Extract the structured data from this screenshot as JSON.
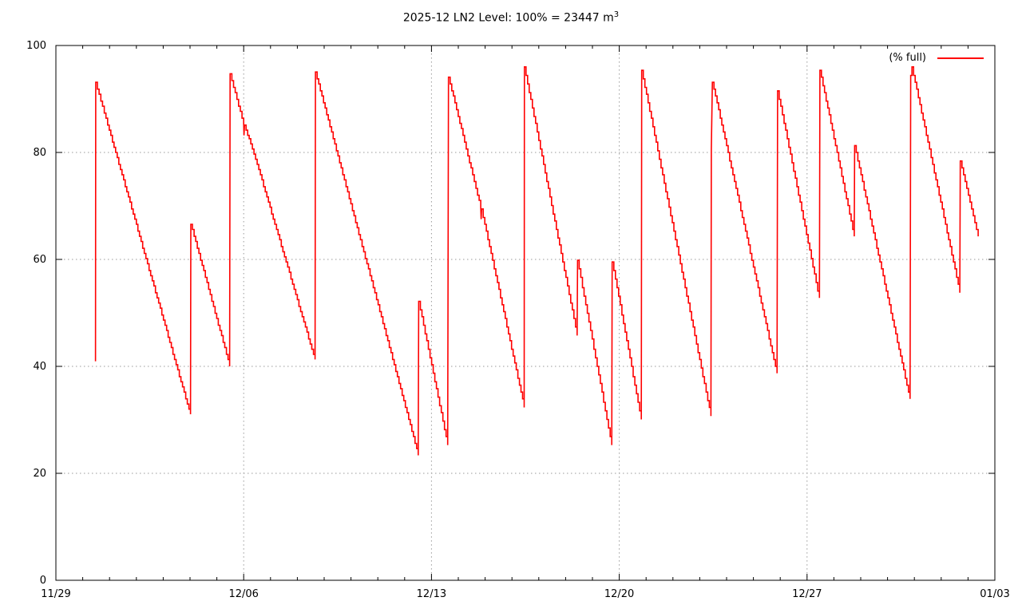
{
  "chart_data": {
    "type": "line",
    "title": "2025-12 LN2 Level: 100% = 23447 m",
    "title_superscript": "3",
    "legend": {
      "label": "(% full)",
      "position": "top-right-inside"
    },
    "x_axis": {
      "unit": "date (month/day), day offset from 11/29",
      "range_days": [
        0,
        35
      ],
      "major_tick_days": [
        0,
        7,
        14,
        21,
        28,
        35
      ],
      "major_tick_labels": [
        "11/29",
        "12/06",
        "12/13",
        "12/20",
        "12/27",
        "01/03"
      ],
      "minor_tick_interval_days": 1,
      "grid_days": [
        7,
        14,
        21,
        28
      ]
    },
    "y_axis": {
      "unit": "% full",
      "range": [
        0,
        100
      ],
      "ticks": [
        0,
        20,
        40,
        60,
        80,
        100
      ],
      "grid": [
        20,
        40,
        60,
        80
      ]
    },
    "grid_on": true,
    "colors": {
      "series": "#ff0000",
      "grid": "#9a9a9a",
      "axis": "#000000",
      "background": "#ffffff"
    },
    "series": [
      {
        "name": "(% full)",
        "color": "#ff0000",
        "points_format": "[day_offset_from_11/29, percent_full]",
        "points": [
          [
            1.475,
            41.0
          ],
          [
            1.484,
            93.0
          ],
          [
            1.93,
            85.2
          ],
          [
            5.017,
            30.9
          ],
          [
            5.03,
            66.6
          ],
          [
            6.477,
            40.1
          ],
          [
            6.495,
            94.6
          ],
          [
            7.0,
            85.3
          ],
          [
            7.012,
            83.2
          ],
          [
            7.03,
            85.0
          ],
          [
            7.383,
            79.8
          ],
          [
            9.66,
            41.2
          ],
          [
            9.677,
            95.0
          ],
          [
            13.507,
            23.4
          ],
          [
            13.525,
            52.1
          ],
          [
            14.605,
            25.3
          ],
          [
            14.635,
            94.1
          ],
          [
            15.837,
            69.7
          ],
          [
            15.852,
            67.5
          ],
          [
            15.87,
            69.3
          ],
          [
            17.455,
            32.4
          ],
          [
            17.464,
            95.9
          ],
          [
            19.43,
            45.9
          ],
          [
            19.445,
            59.8
          ],
          [
            20.721,
            25.2
          ],
          [
            20.736,
            59.6
          ],
          [
            21.82,
            30.0
          ],
          [
            21.835,
            95.3
          ],
          [
            24.417,
            30.7
          ],
          [
            24.432,
            80.5
          ],
          [
            24.47,
            93.2
          ],
          [
            26.881,
            38.6
          ],
          [
            26.902,
            91.5
          ],
          [
            28.46,
            52.7
          ],
          [
            28.478,
            95.4
          ],
          [
            29.76,
            64.3
          ],
          [
            29.775,
            81.2
          ],
          [
            31.838,
            33.8
          ],
          [
            31.862,
            94.3
          ],
          [
            31.912,
            95.9
          ],
          [
            33.694,
            53.9
          ],
          [
            33.712,
            78.3
          ],
          [
            34.377,
            64.3
          ]
        ]
      }
    ]
  }
}
